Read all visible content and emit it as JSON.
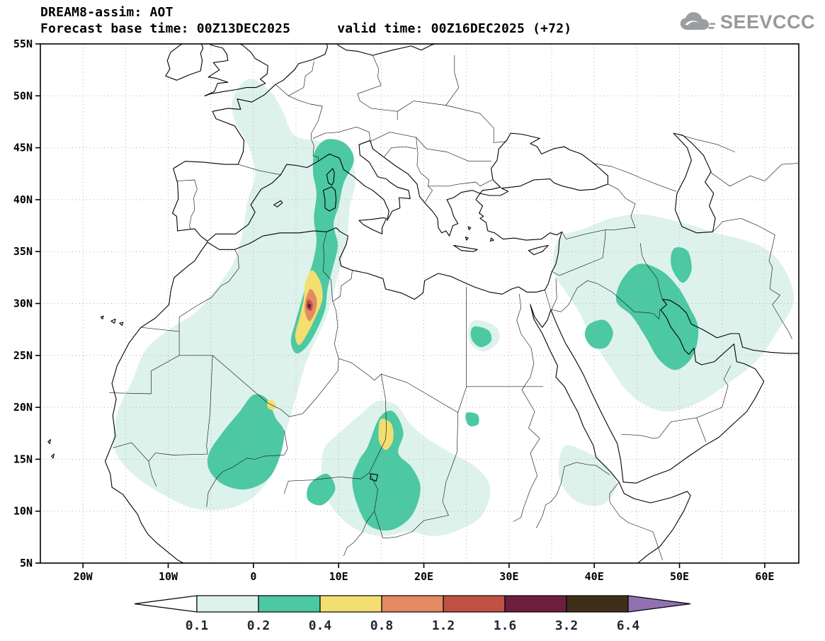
{
  "header": {
    "title": "DREAM8-assim: AOT",
    "base_time_label": "Forecast base time: 00Z13DEC2025",
    "valid_time_label": "valid time: 00Z16DEC2025 (+72)"
  },
  "logo": {
    "text": "SEEVCCC"
  },
  "axes": {
    "lon_range": [
      -25,
      64
    ],
    "lat_range": [
      5,
      55
    ],
    "grid_step_deg": 5,
    "x_ticks": [
      {
        "label": "20W",
        "lon": -20
      },
      {
        "label": "10W",
        "lon": -10
      },
      {
        "label": "0",
        "lon": 0
      },
      {
        "label": "10E",
        "lon": 10
      },
      {
        "label": "20E",
        "lon": 20
      },
      {
        "label": "30E",
        "lon": 30
      },
      {
        "label": "40E",
        "lon": 40
      },
      {
        "label": "50E",
        "lon": 50
      },
      {
        "label": "60E",
        "lon": 60
      }
    ],
    "y_ticks": [
      {
        "label": "55N",
        "lat": 55
      },
      {
        "label": "50N",
        "lat": 50
      },
      {
        "label": "45N",
        "lat": 45
      },
      {
        "label": "40N",
        "lat": 40
      },
      {
        "label": "35N",
        "lat": 35
      },
      {
        "label": "30N",
        "lat": 30
      },
      {
        "label": "25N",
        "lat": 25
      },
      {
        "label": "20N",
        "lat": 20
      },
      {
        "label": "15N",
        "lat": 15
      },
      {
        "label": "10N",
        "lat": 10
      },
      {
        "label": "5N",
        "lat": 5
      }
    ]
  },
  "colorbar": {
    "levels": [
      "0.1",
      "0.2",
      "0.4",
      "0.8",
      "1.2",
      "1.6",
      "3.2",
      "6.4"
    ],
    "cell_colors": [
      "#def2ec",
      "#4cc8a2",
      "#f2df70",
      "#e58a62",
      "#bf5243",
      "#6f1f3e",
      "#3f2f1a"
    ],
    "below_min_color": "#ffffff",
    "above_max_color": "#9271b3",
    "label_color": "#1d2935"
  },
  "chart_data": {
    "type": "filled_contour_map",
    "variable": "AOT (Aerosol Optical Thickness)",
    "model": "DREAM8-assim",
    "base_time": "00Z13DEC2025",
    "valid_time": "00Z16DEC2025",
    "forecast_hour": "+72",
    "map_extent": {
      "lon": [
        -25,
        64
      ],
      "lat": [
        5,
        55
      ]
    },
    "contour_levels": [
      0.1,
      0.2,
      0.4,
      0.8,
      1.2,
      1.6,
      3.2,
      6.4
    ],
    "regions": [
      {
        "level": 0.1,
        "name": "w-europe-nw-africa",
        "points": [
          [
            -2.4,
            49.8
          ],
          [
            -0.6,
            51.6
          ],
          [
            1.8,
            50.6
          ],
          [
            3.4,
            48.6
          ],
          [
            4.8,
            46.2
          ],
          [
            7.8,
            45.6
          ],
          [
            11.0,
            44.4
          ],
          [
            12.0,
            42.0
          ],
          [
            11.3,
            39.2
          ],
          [
            11.0,
            36.4
          ],
          [
            10.0,
            33.0
          ],
          [
            8.6,
            28.8
          ],
          [
            6.4,
            24.8
          ],
          [
            5.0,
            21.0
          ],
          [
            3.4,
            16.6
          ],
          [
            1.2,
            12.4
          ],
          [
            -2.2,
            10.4
          ],
          [
            -6.6,
            10.2
          ],
          [
            -10.6,
            11.6
          ],
          [
            -14.2,
            13.6
          ],
          [
            -16.4,
            16.2
          ],
          [
            -15.9,
            19.6
          ],
          [
            -14.2,
            22.6
          ],
          [
            -12.6,
            25.6
          ],
          [
            -9.7,
            27.6
          ],
          [
            -6.7,
            29.2
          ],
          [
            -4.2,
            31.6
          ],
          [
            -2.2,
            34.2
          ],
          [
            -1.3,
            36.8
          ],
          [
            -0.7,
            39.8
          ],
          [
            0.2,
            42.4
          ],
          [
            -0.6,
            45.2
          ],
          [
            -2.2,
            47.6
          ]
        ]
      },
      {
        "level": 0.1,
        "name": "sahel-chad-sudan",
        "points": [
          [
            8.2,
            15.8
          ],
          [
            10.2,
            17.6
          ],
          [
            12.4,
            19.2
          ],
          [
            14.6,
            20.6
          ],
          [
            16.8,
            20.2
          ],
          [
            18.4,
            18.4
          ],
          [
            20.4,
            17.0
          ],
          [
            23.2,
            15.6
          ],
          [
            26.2,
            14.2
          ],
          [
            27.8,
            12.2
          ],
          [
            26.8,
            9.6
          ],
          [
            24.2,
            8.2
          ],
          [
            21.2,
            7.6
          ],
          [
            18.2,
            8.0
          ],
          [
            15.2,
            7.6
          ],
          [
            12.2,
            8.2
          ],
          [
            9.8,
            9.8
          ],
          [
            8.2,
            12.2
          ]
        ]
      },
      {
        "level": 0.1,
        "name": "eritrea-red-sea",
        "points": [
          [
            36.4,
            16.2
          ],
          [
            38.8,
            15.8
          ],
          [
            41.4,
            14.4
          ],
          [
            42.6,
            12.4
          ],
          [
            40.8,
            10.6
          ],
          [
            37.8,
            11.0
          ],
          [
            35.9,
            13.2
          ]
        ]
      },
      {
        "level": 0.1,
        "name": "middle-east",
        "points": [
          [
            35.8,
            36.2
          ],
          [
            38.8,
            37.2
          ],
          [
            42.0,
            38.2
          ],
          [
            45.2,
            38.6
          ],
          [
            48.2,
            38.2
          ],
          [
            51.2,
            37.6
          ],
          [
            54.2,
            36.8
          ],
          [
            57.2,
            36.2
          ],
          [
            60.2,
            35.2
          ],
          [
            62.4,
            33.2
          ],
          [
            63.4,
            30.2
          ],
          [
            61.4,
            27.2
          ],
          [
            59.2,
            24.6
          ],
          [
            56.2,
            22.6
          ],
          [
            52.6,
            20.6
          ],
          [
            49.0,
            19.6
          ],
          [
            46.0,
            20.2
          ],
          [
            43.6,
            21.8
          ],
          [
            41.6,
            24.2
          ],
          [
            39.6,
            26.8
          ],
          [
            38.2,
            29.2
          ],
          [
            36.6,
            31.2
          ],
          [
            35.2,
            33.2
          ]
        ]
      },
      {
        "level": 0.1,
        "name": "sw-egypt-fringe",
        "points": [
          [
            26.0,
            28.4
          ],
          [
            28.4,
            27.8
          ],
          [
            28.8,
            26.4
          ],
          [
            27.2,
            25.4
          ],
          [
            25.6,
            26.0
          ],
          [
            25.2,
            27.4
          ]
        ]
      },
      {
        "level": 0.2,
        "name": "italy-algeria-band",
        "points": [
          [
            7.2,
            44.6
          ],
          [
            8.6,
            45.8
          ],
          [
            10.8,
            45.4
          ],
          [
            11.8,
            43.8
          ],
          [
            10.6,
            41.6
          ],
          [
            10.0,
            39.4
          ],
          [
            9.4,
            37.6
          ],
          [
            9.9,
            35.6
          ],
          [
            9.3,
            33.4
          ],
          [
            8.7,
            31.4
          ],
          [
            8.4,
            29.4
          ],
          [
            7.4,
            27.4
          ],
          [
            6.2,
            25.8
          ],
          [
            5.0,
            25.2
          ],
          [
            4.4,
            26.4
          ],
          [
            5.0,
            28.4
          ],
          [
            5.7,
            30.4
          ],
          [
            6.4,
            32.4
          ],
          [
            7.1,
            34.4
          ],
          [
            7.4,
            36.2
          ],
          [
            7.1,
            38.2
          ],
          [
            7.4,
            40.6
          ],
          [
            7.0,
            42.6
          ]
        ]
      },
      {
        "level": 0.2,
        "name": "mali-niger",
        "points": [
          [
            -5.2,
            15.6
          ],
          [
            -3.6,
            17.6
          ],
          [
            -1.6,
            19.6
          ],
          [
            0.0,
            21.2
          ],
          [
            1.6,
            20.8
          ],
          [
            2.6,
            19.0
          ],
          [
            3.6,
            17.6
          ],
          [
            3.0,
            15.0
          ],
          [
            1.6,
            13.0
          ],
          [
            -1.0,
            12.1
          ],
          [
            -3.6,
            12.6
          ],
          [
            -5.2,
            14.0
          ]
        ]
      },
      {
        "level": 0.2,
        "name": "chad-sudan",
        "points": [
          [
            13.4,
            16.2
          ],
          [
            14.8,
            19.0
          ],
          [
            16.4,
            19.6
          ],
          [
            17.6,
            17.6
          ],
          [
            17.0,
            15.6
          ],
          [
            18.6,
            14.2
          ],
          [
            19.6,
            12.2
          ],
          [
            18.6,
            9.6
          ],
          [
            16.2,
            8.2
          ],
          [
            13.6,
            8.6
          ],
          [
            12.2,
            10.6
          ],
          [
            11.6,
            13.0
          ],
          [
            12.4,
            14.9
          ]
        ]
      },
      {
        "level": 0.2,
        "name": "nigeria-spot",
        "points": [
          [
            6.6,
            12.6
          ],
          [
            8.6,
            13.6
          ],
          [
            9.6,
            12.1
          ],
          [
            8.1,
            10.6
          ],
          [
            6.4,
            11.1
          ]
        ]
      },
      {
        "level": 0.2,
        "name": "iraq-gulf",
        "points": [
          [
            43.2,
            32.2
          ],
          [
            45.2,
            33.8
          ],
          [
            47.8,
            33.2
          ],
          [
            49.8,
            31.6
          ],
          [
            51.2,
            29.6
          ],
          [
            52.2,
            27.6
          ],
          [
            51.6,
            25.0
          ],
          [
            49.6,
            23.6
          ],
          [
            47.6,
            24.6
          ],
          [
            46.0,
            26.8
          ],
          [
            44.4,
            28.8
          ],
          [
            42.6,
            30.2
          ]
        ]
      },
      {
        "level": 0.2,
        "name": "west-iran",
        "points": [
          [
            49.6,
            35.4
          ],
          [
            51.0,
            35.0
          ],
          [
            51.4,
            33.2
          ],
          [
            50.4,
            32.0
          ],
          [
            49.2,
            33.2
          ],
          [
            49.0,
            34.6
          ]
        ]
      },
      {
        "level": 0.2,
        "name": "nw-arabia-spot",
        "points": [
          [
            39.4,
            28.0
          ],
          [
            41.2,
            28.4
          ],
          [
            42.2,
            27.2
          ],
          [
            41.4,
            25.8
          ],
          [
            39.8,
            25.8
          ],
          [
            38.9,
            26.9
          ]
        ]
      },
      {
        "level": 0.2,
        "name": "sw-egypt-spot",
        "points": [
          [
            26.0,
            27.8
          ],
          [
            27.6,
            27.4
          ],
          [
            27.9,
            26.4
          ],
          [
            26.8,
            25.8
          ],
          [
            25.8,
            26.3
          ],
          [
            25.5,
            27.2
          ]
        ]
      },
      {
        "level": 0.2,
        "name": "nw-sudan-speck",
        "points": [
          [
            25.1,
            19.5
          ],
          [
            26.3,
            19.3
          ],
          [
            26.4,
            18.4
          ],
          [
            25.4,
            18.2
          ],
          [
            24.9,
            18.9
          ]
        ]
      },
      {
        "level": 0.4,
        "name": "algeria-core",
        "points": [
          [
            6.9,
            33.2
          ],
          [
            7.9,
            32.0
          ],
          [
            8.1,
            30.4
          ],
          [
            7.4,
            28.9
          ],
          [
            6.4,
            27.2
          ],
          [
            5.4,
            26.0
          ],
          [
            4.9,
            26.9
          ],
          [
            5.4,
            28.6
          ],
          [
            5.9,
            30.4
          ],
          [
            6.1,
            32.0
          ]
        ]
      },
      {
        "level": 0.4,
        "name": "chad-core",
        "points": [
          [
            15.0,
            18.9
          ],
          [
            16.2,
            18.4
          ],
          [
            16.4,
            16.9
          ],
          [
            15.6,
            15.9
          ],
          [
            14.8,
            16.6
          ],
          [
            14.7,
            17.9
          ]
        ]
      },
      {
        "level": 0.4,
        "name": "mali-speck",
        "points": [
          [
            1.8,
            20.7
          ],
          [
            2.5,
            20.5
          ],
          [
            2.6,
            19.9
          ],
          [
            1.9,
            19.8
          ],
          [
            1.6,
            20.3
          ]
        ]
      },
      {
        "level": 0.8,
        "name": "algeria-inner",
        "points": [
          [
            6.7,
            31.4
          ],
          [
            7.4,
            30.5
          ],
          [
            7.3,
            29.3
          ],
          [
            6.6,
            28.3
          ],
          [
            6.05,
            29.2
          ],
          [
            6.15,
            30.4
          ]
        ]
      },
      {
        "level": 1.2,
        "name": "algeria-max",
        "points": [
          [
            6.45,
            30.4
          ],
          [
            6.95,
            30.0
          ],
          [
            6.8,
            29.3
          ],
          [
            6.3,
            29.5
          ],
          [
            6.2,
            30.0
          ]
        ]
      },
      {
        "level": 1.6,
        "name": "algeria-peak",
        "points": [
          [
            6.45,
            30.05
          ],
          [
            6.75,
            29.85
          ],
          [
            6.6,
            29.5
          ],
          [
            6.35,
            29.7
          ]
        ]
      }
    ]
  }
}
